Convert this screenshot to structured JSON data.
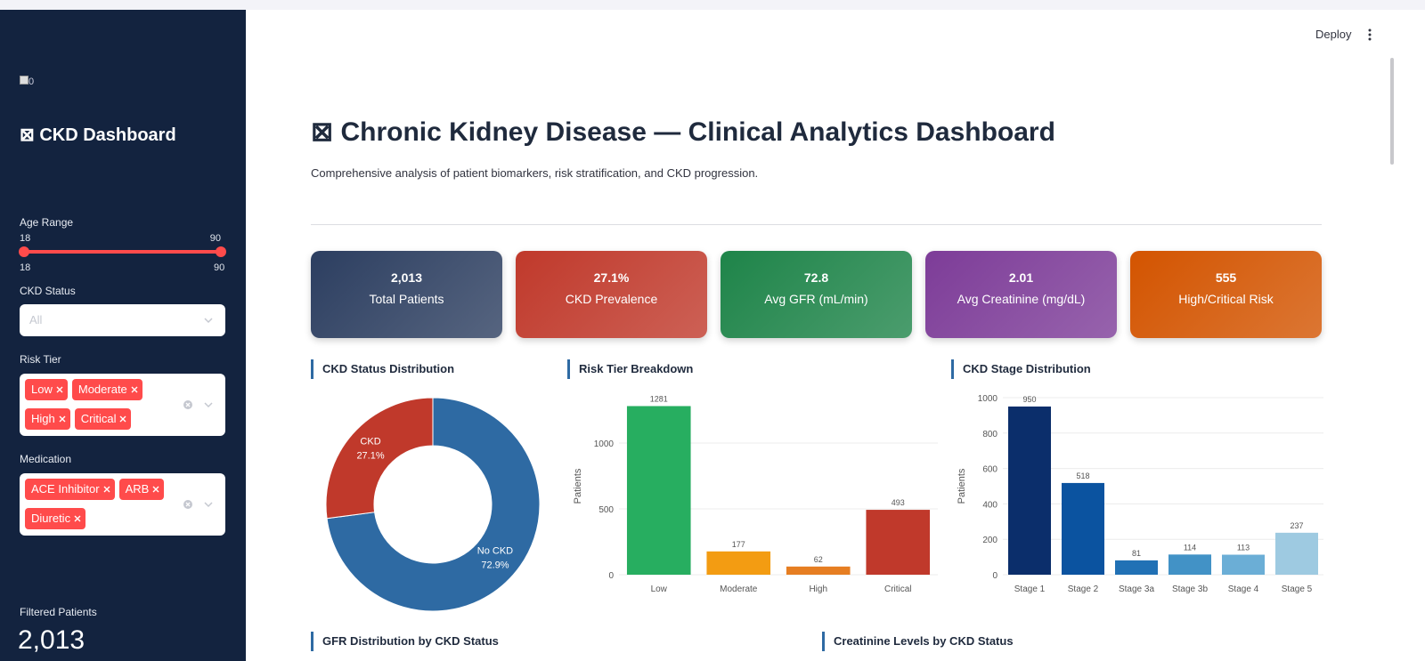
{
  "sidebar": {
    "logo_alt": "0",
    "title": "⊠ CKD Dashboard",
    "age_range": {
      "label": "Age Range",
      "value": [
        18,
        90
      ],
      "min": 18,
      "max": 90
    },
    "ckd_status": {
      "label": "CKD Status",
      "placeholder": "All"
    },
    "risk_tier": {
      "label": "Risk Tier",
      "selected": [
        "Low",
        "Moderate",
        "High",
        "Critical"
      ]
    },
    "medication": {
      "label": "Medication",
      "selected": [
        "ACE Inhibitor",
        "ARB",
        "Diuretic"
      ]
    },
    "filtered_patients": {
      "label": "Filtered Patients",
      "value": "2,013"
    }
  },
  "toolbar": {
    "deploy": "Deploy"
  },
  "header": {
    "title": "⊠ Chronic Kidney Disease — Clinical Analytics Dashboard",
    "subtitle": "Comprehensive analysis of patient biomarkers, risk stratification, and CKD progression."
  },
  "kpis": [
    {
      "value": "2,013",
      "label": "Total Patients",
      "color": "#2c3e60"
    },
    {
      "value": "27.1%",
      "label": "CKD Prevalence",
      "color": "#c0392b"
    },
    {
      "value": "72.8",
      "label": "Avg GFR (mL/min)",
      "color": "#1e8449"
    },
    {
      "value": "2.01",
      "label": "Avg Creatinine (mg/dL)",
      "color": "#7d3c98"
    },
    {
      "value": "555",
      "label": "High/Critical Risk",
      "color": "#d35400"
    }
  ],
  "chart_data": [
    {
      "type": "pie",
      "title": "CKD Status Distribution",
      "hole": true,
      "categories": [
        "No CKD",
        "CKD"
      ],
      "values": [
        72.9,
        27.1
      ],
      "value_labels": [
        "72.9%",
        "27.1%"
      ],
      "colors": [
        "#2e6aa3",
        "#c0392b"
      ]
    },
    {
      "type": "bar",
      "title": "Risk Tier Breakdown",
      "ylabel": "Patients",
      "categories": [
        "Low",
        "Moderate",
        "High",
        "Critical"
      ],
      "values": [
        1281,
        177,
        62,
        493
      ],
      "colors": [
        "#27ae60",
        "#f39c12",
        "#e67e22",
        "#c0392b"
      ],
      "ylim": [
        0,
        1345
      ],
      "yticks": [
        0,
        500,
        1000
      ],
      "grid": true
    },
    {
      "type": "bar",
      "title": "CKD Stage Distribution",
      "ylabel": "Patients",
      "categories": [
        "Stage 1",
        "Stage 2",
        "Stage 3a",
        "Stage 3b",
        "Stage 4",
        "Stage 5"
      ],
      "values": [
        950,
        518,
        81,
        114,
        113,
        237
      ],
      "colors": [
        "#0b2e6b",
        "#0b53a0",
        "#2171b5",
        "#4292c6",
        "#6baed6",
        "#9ecae1"
      ],
      "ylim": [
        0,
        1000
      ],
      "yticks": [
        0,
        200,
        400,
        600,
        800,
        1000
      ],
      "grid": true
    }
  ],
  "sections": [
    "GFR Distribution by CKD Status",
    "Creatinine Levels by CKD Status"
  ]
}
